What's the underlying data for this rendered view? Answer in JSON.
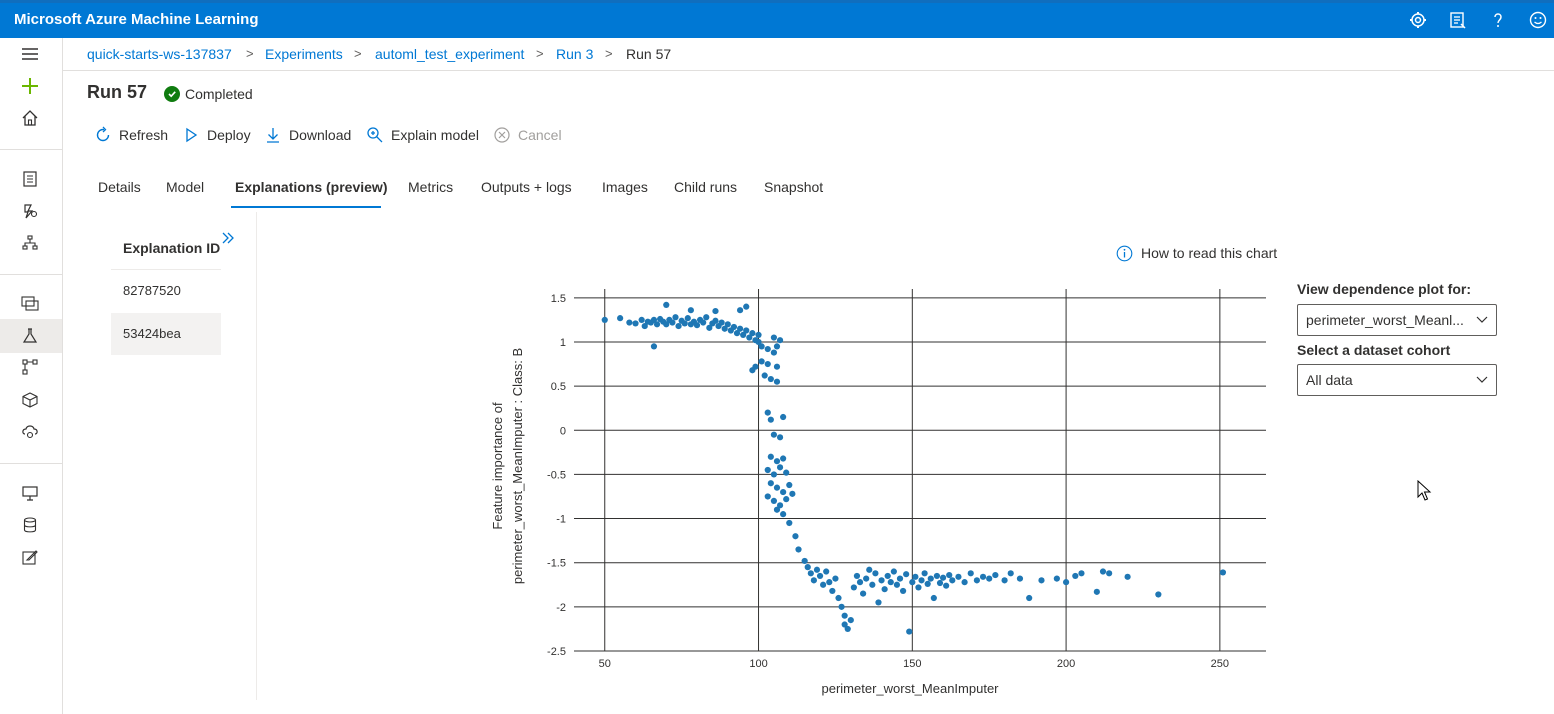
{
  "app": {
    "title": "Microsoft Azure Machine Learning"
  },
  "topbar_icons": [
    "gear-icon",
    "feedback-list-icon",
    "help-icon",
    "smiley-icon"
  ],
  "breadcrumb": {
    "items": [
      "quick-starts-ws-137837",
      "Experiments",
      "automl_test_experiment",
      "Run 3",
      "Run 57"
    ],
    "separator": ">"
  },
  "run": {
    "title": "Run 57",
    "status": "Completed",
    "status_color": "#107c10"
  },
  "toolbar": {
    "refresh": "Refresh",
    "deploy": "Deploy",
    "download": "Download",
    "explain": "Explain model",
    "cancel": "Cancel"
  },
  "tabs": [
    "Details",
    "Model",
    "Explanations (preview)",
    "Metrics",
    "Outputs + logs",
    "Images",
    "Child runs",
    "Snapshot"
  ],
  "active_tab": "Explanations (preview)",
  "explanations": {
    "header": "Explanation ID",
    "items": [
      "82787520",
      "53424bea"
    ],
    "selected": "53424bea"
  },
  "help_link": "How to read this chart",
  "controls": {
    "dependence_label": "View dependence plot for:",
    "dependence_value": "perimeter_worst_Meanl...",
    "cohort_label": "Select a dataset cohort",
    "cohort_value": "All data"
  },
  "colors": {
    "accent": "#0078d4",
    "point": "#1f77b4"
  },
  "chart_data": {
    "type": "scatter",
    "xlabel": "perimeter_worst_MeanImputer",
    "ylabel_line1": "Feature importance of",
    "ylabel_line2": "perimeter_worst_MeanImputer : Class: B",
    "xlim": [
      40,
      265
    ],
    "ylim": [
      -2.5,
      1.6
    ],
    "xticks": [
      50,
      100,
      150,
      200,
      250
    ],
    "yticks": [
      1.5,
      1,
      0.5,
      0,
      -0.5,
      -1,
      -1.5,
      -2,
      -2.5
    ],
    "ytick_labels": [
      "1.5",
      "1",
      "0.5",
      "0",
      "-0.5",
      "-1",
      "-1.5",
      "-2",
      "-2.5"
    ],
    "grid": true,
    "points": [
      [
        50,
        1.25
      ],
      [
        55,
        1.27
      ],
      [
        58,
        1.22
      ],
      [
        60,
        1.21
      ],
      [
        62,
        1.25
      ],
      [
        63,
        1.18
      ],
      [
        64,
        1.23
      ],
      [
        65,
        1.22
      ],
      [
        66,
        1.25
      ],
      [
        66,
        0.95
      ],
      [
        67,
        1.2
      ],
      [
        68,
        1.26
      ],
      [
        69,
        1.23
      ],
      [
        70,
        1.42
      ],
      [
        70,
        1.2
      ],
      [
        71,
        1.25
      ],
      [
        72,
        1.22
      ],
      [
        73,
        1.28
      ],
      [
        74,
        1.18
      ],
      [
        75,
        1.24
      ],
      [
        76,
        1.21
      ],
      [
        77,
        1.27
      ],
      [
        78,
        1.2
      ],
      [
        78,
        1.36
      ],
      [
        79,
        1.23
      ],
      [
        80,
        1.19
      ],
      [
        81,
        1.25
      ],
      [
        82,
        1.22
      ],
      [
        83,
        1.28
      ],
      [
        84,
        1.16
      ],
      [
        85,
        1.21
      ],
      [
        86,
        1.24
      ],
      [
        86,
        1.35
      ],
      [
        87,
        1.18
      ],
      [
        88,
        1.22
      ],
      [
        89,
        1.15
      ],
      [
        90,
        1.2
      ],
      [
        91,
        1.13
      ],
      [
        92,
        1.17
      ],
      [
        93,
        1.1
      ],
      [
        94,
        1.36
      ],
      [
        94,
        1.15
      ],
      [
        95,
        1.08
      ],
      [
        96,
        1.13
      ],
      [
        96,
        1.4
      ],
      [
        97,
        1.05
      ],
      [
        98,
        1.1
      ],
      [
        99,
        1.02
      ],
      [
        99,
        0.72
      ],
      [
        100,
        1.0
      ],
      [
        100,
        1.08
      ],
      [
        101,
        0.95
      ],
      [
        101,
        0.78
      ],
      [
        102,
        0.62
      ],
      [
        103,
        0.92
      ],
      [
        103,
        0.75
      ],
      [
        104,
        0.58
      ],
      [
        105,
        1.05
      ],
      [
        105,
        0.88
      ],
      [
        106,
        0.72
      ],
      [
        106,
        0.95
      ],
      [
        107,
        1.02
      ],
      [
        106,
        0.55
      ],
      [
        98,
        0.68
      ],
      [
        103,
        0.2
      ],
      [
        104,
        0.12
      ],
      [
        108,
        0.15
      ],
      [
        105,
        -0.05
      ],
      [
        107,
        -0.08
      ],
      [
        104,
        -0.3
      ],
      [
        106,
        -0.35
      ],
      [
        108,
        -0.32
      ],
      [
        103,
        -0.45
      ],
      [
        105,
        -0.5
      ],
      [
        107,
        -0.42
      ],
      [
        109,
        -0.48
      ],
      [
        104,
        -0.6
      ],
      [
        106,
        -0.65
      ],
      [
        108,
        -0.7
      ],
      [
        110,
        -0.62
      ],
      [
        103,
        -0.75
      ],
      [
        105,
        -0.8
      ],
      [
        107,
        -0.85
      ],
      [
        109,
        -0.78
      ],
      [
        111,
        -0.72
      ],
      [
        106,
        -0.9
      ],
      [
        108,
        -0.95
      ],
      [
        110,
        -1.05
      ],
      [
        112,
        -1.2
      ],
      [
        113,
        -1.35
      ],
      [
        115,
        -1.48
      ],
      [
        116,
        -1.55
      ],
      [
        117,
        -1.62
      ],
      [
        118,
        -1.7
      ],
      [
        119,
        -1.58
      ],
      [
        120,
        -1.65
      ],
      [
        121,
        -1.75
      ],
      [
        122,
        -1.6
      ],
      [
        123,
        -1.72
      ],
      [
        124,
        -1.82
      ],
      [
        125,
        -1.68
      ],
      [
        126,
        -1.9
      ],
      [
        127,
        -2.0
      ],
      [
        128,
        -2.1
      ],
      [
        128,
        -2.2
      ],
      [
        129,
        -2.25
      ],
      [
        130,
        -2.15
      ],
      [
        131,
        -1.78
      ],
      [
        132,
        -1.65
      ],
      [
        133,
        -1.72
      ],
      [
        134,
        -1.85
      ],
      [
        135,
        -1.68
      ],
      [
        136,
        -1.58
      ],
      [
        137,
        -1.75
      ],
      [
        138,
        -1.62
      ],
      [
        139,
        -1.95
      ],
      [
        140,
        -1.7
      ],
      [
        141,
        -1.8
      ],
      [
        142,
        -1.65
      ],
      [
        143,
        -1.72
      ],
      [
        144,
        -1.6
      ],
      [
        145,
        -1.75
      ],
      [
        146,
        -1.68
      ],
      [
        147,
        -1.82
      ],
      [
        148,
        -1.63
      ],
      [
        149,
        -2.28
      ],
      [
        150,
        -1.72
      ],
      [
        151,
        -1.66
      ],
      [
        152,
        -1.78
      ],
      [
        153,
        -1.7
      ],
      [
        154,
        -1.62
      ],
      [
        155,
        -1.74
      ],
      [
        156,
        -1.68
      ],
      [
        157,
        -1.9
      ],
      [
        158,
        -1.65
      ],
      [
        159,
        -1.73
      ],
      [
        160,
        -1.67
      ],
      [
        161,
        -1.76
      ],
      [
        162,
        -1.64
      ],
      [
        163,
        -1.7
      ],
      [
        165,
        -1.66
      ],
      [
        167,
        -1.72
      ],
      [
        169,
        -1.62
      ],
      [
        171,
        -1.7
      ],
      [
        173,
        -1.66
      ],
      [
        175,
        -1.68
      ],
      [
        177,
        -1.64
      ],
      [
        180,
        -1.7
      ],
      [
        182,
        -1.62
      ],
      [
        185,
        -1.68
      ],
      [
        188,
        -1.9
      ],
      [
        192,
        -1.7
      ],
      [
        197,
        -1.68
      ],
      [
        200,
        -1.72
      ],
      [
        203,
        -1.65
      ],
      [
        205,
        -1.62
      ],
      [
        210,
        -1.83
      ],
      [
        212,
        -1.6
      ],
      [
        214,
        -1.62
      ],
      [
        220,
        -1.66
      ],
      [
        230,
        -1.86
      ],
      [
        251,
        -1.61
      ]
    ]
  }
}
